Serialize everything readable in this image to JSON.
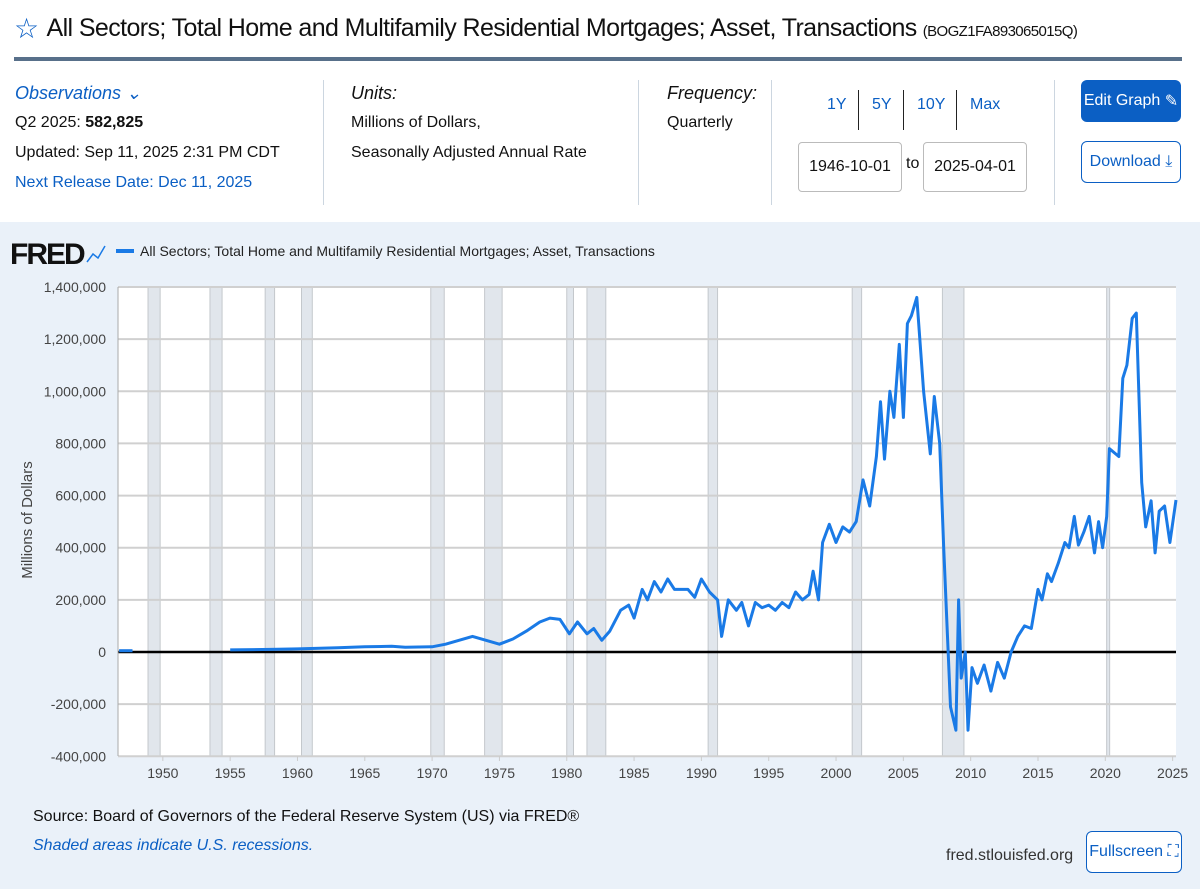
{
  "header": {
    "title": "All Sectors; Total Home and Multifamily Residential Mortgages; Asset, Transactions",
    "series_id": "(BOGZ1FA893065015Q)",
    "star_icon": "star-outline"
  },
  "info": {
    "observations_label": "Observations",
    "obs_period": "Q2 2025:",
    "obs_value": "582,825",
    "updated": "Updated: Sep 11, 2025 2:31 PM CDT",
    "next_release": "Next Release Date: Dec 11, 2025",
    "units_label": "Units:",
    "units_line1": "Millions of Dollars,",
    "units_line2": "Seasonally Adjusted Annual Rate",
    "frequency_label": "Frequency:",
    "frequency_value": "Quarterly"
  },
  "range": {
    "buttons": [
      "1Y",
      "5Y",
      "10Y",
      "Max"
    ],
    "start": "1946-10-01",
    "to": "to",
    "end": "2025-04-01"
  },
  "actions": {
    "edit": "Edit Graph",
    "download": "Download",
    "fullscreen": "Fullscreen"
  },
  "footer": {
    "source": "Source: Board of Governors of the Federal Reserve System (US) via FRED®",
    "recession_note": "Shaded areas indicate U.S. recessions.",
    "site": "fred.stlouisfed.org"
  },
  "colors": {
    "line": "#1a7ae6",
    "accent": "#0b5fc4",
    "recession": "#e1e6ec"
  },
  "chart_data": {
    "type": "line",
    "logo": "FRED",
    "legend": "All Sectors; Total Home and Multifamily Residential Mortgages; Asset, Transactions",
    "legend_position": "top-left",
    "ylabel": "Millions of Dollars",
    "ylim": [
      -450000,
      1400000
    ],
    "xlim": [
      1946.67,
      2025.25
    ],
    "grid": true,
    "yticks": [
      -400000,
      -200000,
      0,
      200000,
      400000,
      600000,
      800000,
      1000000,
      1200000,
      1400000
    ],
    "ytick_labels": [
      "-400,000",
      "-200,000",
      "0",
      "200,000",
      "400,000",
      "600,000",
      "800,000",
      "1,000,000",
      "1,200,000",
      "1,400,000"
    ],
    "xticks": [
      1950,
      1955,
      1960,
      1965,
      1970,
      1975,
      1980,
      1985,
      1990,
      1995,
      2000,
      2005,
      2010,
      2015,
      2020,
      2025
    ],
    "recessions": [
      [
        1948.9,
        1949.8
      ],
      [
        1953.5,
        1954.4
      ],
      [
        1957.6,
        1958.3
      ],
      [
        1960.3,
        1961.1
      ],
      [
        1969.9,
        1970.9
      ],
      [
        1973.9,
        1975.2
      ],
      [
        1980.0,
        1980.5
      ],
      [
        1981.5,
        1982.9
      ],
      [
        1990.5,
        1991.2
      ],
      [
        2001.2,
        2001.9
      ],
      [
        2007.9,
        2009.5
      ],
      [
        2020.1,
        2020.3
      ]
    ],
    "series": [
      {
        "x": [
          1946.75,
          1947.75,
          1952,
          1955,
          1958,
          1960,
          1963,
          1965,
          1967,
          1968,
          1970,
          1971,
          1972,
          1973,
          1974,
          1975,
          1976,
          1977,
          1978,
          1978.75,
          1979.5,
          1980.2,
          1980.8,
          1981.5,
          1982.0,
          1982.6,
          1983.2,
          1984,
          1984.6,
          1985,
          1985.6,
          1986,
          1986.5,
          1987,
          1987.5,
          1988,
          1989,
          1989.5,
          1990,
          1990.6,
          1991.2,
          1991.5,
          1992,
          1992.6,
          1993,
          1993.5,
          1994,
          1994.5,
          1995,
          1995.5,
          1996,
          1996.5,
          1997,
          1997.5,
          1998,
          1998.3,
          1998.7,
          1999,
          1999.5,
          2000,
          2000.5,
          2001,
          2001.5,
          2002,
          2002.5,
          2003,
          2003.3,
          2003.6,
          2004,
          2004.3,
          2004.7,
          2005,
          2005.3,
          2005.6,
          2006,
          2006.5,
          2007,
          2007.3,
          2007.7,
          2008,
          2008.5,
          2008.9,
          2009.1,
          2009.3,
          2009.6,
          2009.8,
          2010.1,
          2010.5,
          2011,
          2011.5,
          2012,
          2012.5,
          2013,
          2013.5,
          2014,
          2014.5,
          2015,
          2015.3,
          2015.7,
          2016,
          2016.5,
          2017,
          2017.3,
          2017.7,
          2018,
          2018.4,
          2018.8,
          2019.2,
          2019.5,
          2019.8,
          2020.1,
          2020.3,
          2021,
          2021.3,
          2021.6,
          2022,
          2022.3,
          2022.7,
          2023,
          2023.4,
          2023.7,
          2024,
          2024.4,
          2024.8,
          2025.25
        ],
        "y": [
          5000,
          5000,
          null,
          8000,
          10000,
          12000,
          16000,
          20000,
          22000,
          18000,
          20000,
          30000,
          45000,
          60000,
          45000,
          30000,
          50000,
          80000,
          115000,
          130000,
          125000,
          70000,
          115000,
          70000,
          90000,
          45000,
          80000,
          160000,
          180000,
          130000,
          240000,
          200000,
          270000,
          230000,
          280000,
          240000,
          240000,
          210000,
          280000,
          230000,
          200000,
          60000,
          200000,
          160000,
          190000,
          100000,
          190000,
          170000,
          180000,
          160000,
          190000,
          170000,
          230000,
          200000,
          220000,
          310000,
          200000,
          420000,
          490000,
          420000,
          480000,
          460000,
          500000,
          660000,
          560000,
          750000,
          960000,
          740000,
          1000000,
          900000,
          1180000,
          900000,
          1260000,
          1290000,
          1360000,
          1000000,
          760000,
          980000,
          800000,
          400000,
          -210000,
          -300000,
          200000,
          -100000,
          0,
          -300000,
          -60000,
          -120000,
          -50000,
          -150000,
          -40000,
          -100000,
          0,
          60000,
          100000,
          90000,
          240000,
          200000,
          300000,
          270000,
          340000,
          420000,
          400000,
          520000,
          410000,
          460000,
          520000,
          380000,
          500000,
          400000,
          520000,
          780000,
          750000,
          1050000,
          1100000,
          1280000,
          1300000,
          650000,
          480000,
          580000,
          380000,
          540000,
          560000,
          420000,
          582825
        ]
      }
    ]
  }
}
